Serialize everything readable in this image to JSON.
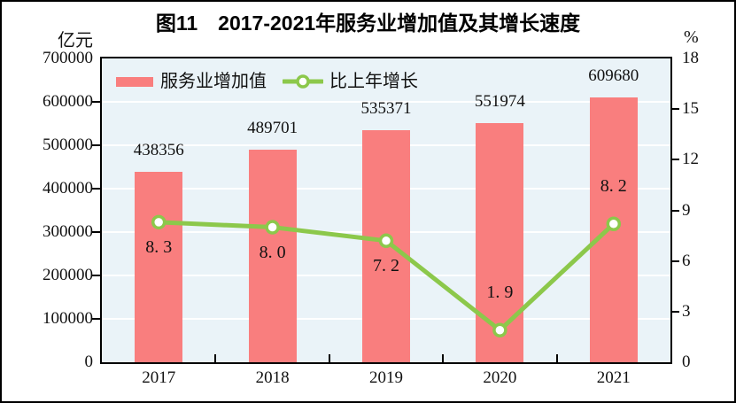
{
  "title": "图11　2017-2021年服务业增加值及其增长速度",
  "left_axis": {
    "unit": "亿元",
    "tick_labels": [
      "700000",
      "600000",
      "500000",
      "400000",
      "300000",
      "200000",
      "100000",
      "0"
    ],
    "tick_values": [
      700000,
      600000,
      500000,
      400000,
      300000,
      200000,
      100000,
      0
    ]
  },
  "right_axis": {
    "unit": "%",
    "tick_labels": [
      "18",
      "15",
      "12",
      "9",
      "6",
      "3",
      "0"
    ],
    "tick_values": [
      18,
      15,
      12,
      9,
      6,
      3,
      0
    ]
  },
  "legend": {
    "items": [
      {
        "label": "服务业增加值",
        "type": "bar"
      },
      {
        "label": "比上年增长",
        "type": "line"
      }
    ]
  },
  "colors": {
    "bar": "#F97E7E",
    "line": "#8CC84B",
    "plot_background": "#EAF3F8",
    "gridline": "#FFFFFF",
    "text": "#111111"
  },
  "chart_data": {
    "type": "bar+line combo",
    "categories": [
      "2017",
      "2018",
      "2019",
      "2020",
      "2021"
    ],
    "series": [
      {
        "name": "服务业增加值",
        "type": "bar",
        "axis": "left",
        "values": [
          438356,
          489701,
          535371,
          551974,
          609680
        ],
        "data_labels": [
          "438356",
          "489701",
          "535371",
          "551974",
          "609680"
        ],
        "color": "#F97E7E"
      },
      {
        "name": "比上年增长",
        "type": "line",
        "axis": "right",
        "values": [
          8.3,
          8.0,
          7.2,
          1.9,
          8.2
        ],
        "data_labels": [
          "8. 3",
          "8. 0",
          "7. 2",
          "1. 9",
          "8. 2"
        ],
        "label_side": [
          "below",
          "below",
          "below",
          "above",
          "above"
        ],
        "color": "#8CC84B",
        "marker": "circle-white-fill-green-ring"
      }
    ],
    "left_ylabel": "亿元",
    "right_ylabel": "%",
    "left_ylim": [
      0,
      700000
    ],
    "left_step": 100000,
    "right_ylim": [
      0,
      18
    ],
    "right_step": 3,
    "grid": true,
    "legend_position": "top-left-inside"
  }
}
